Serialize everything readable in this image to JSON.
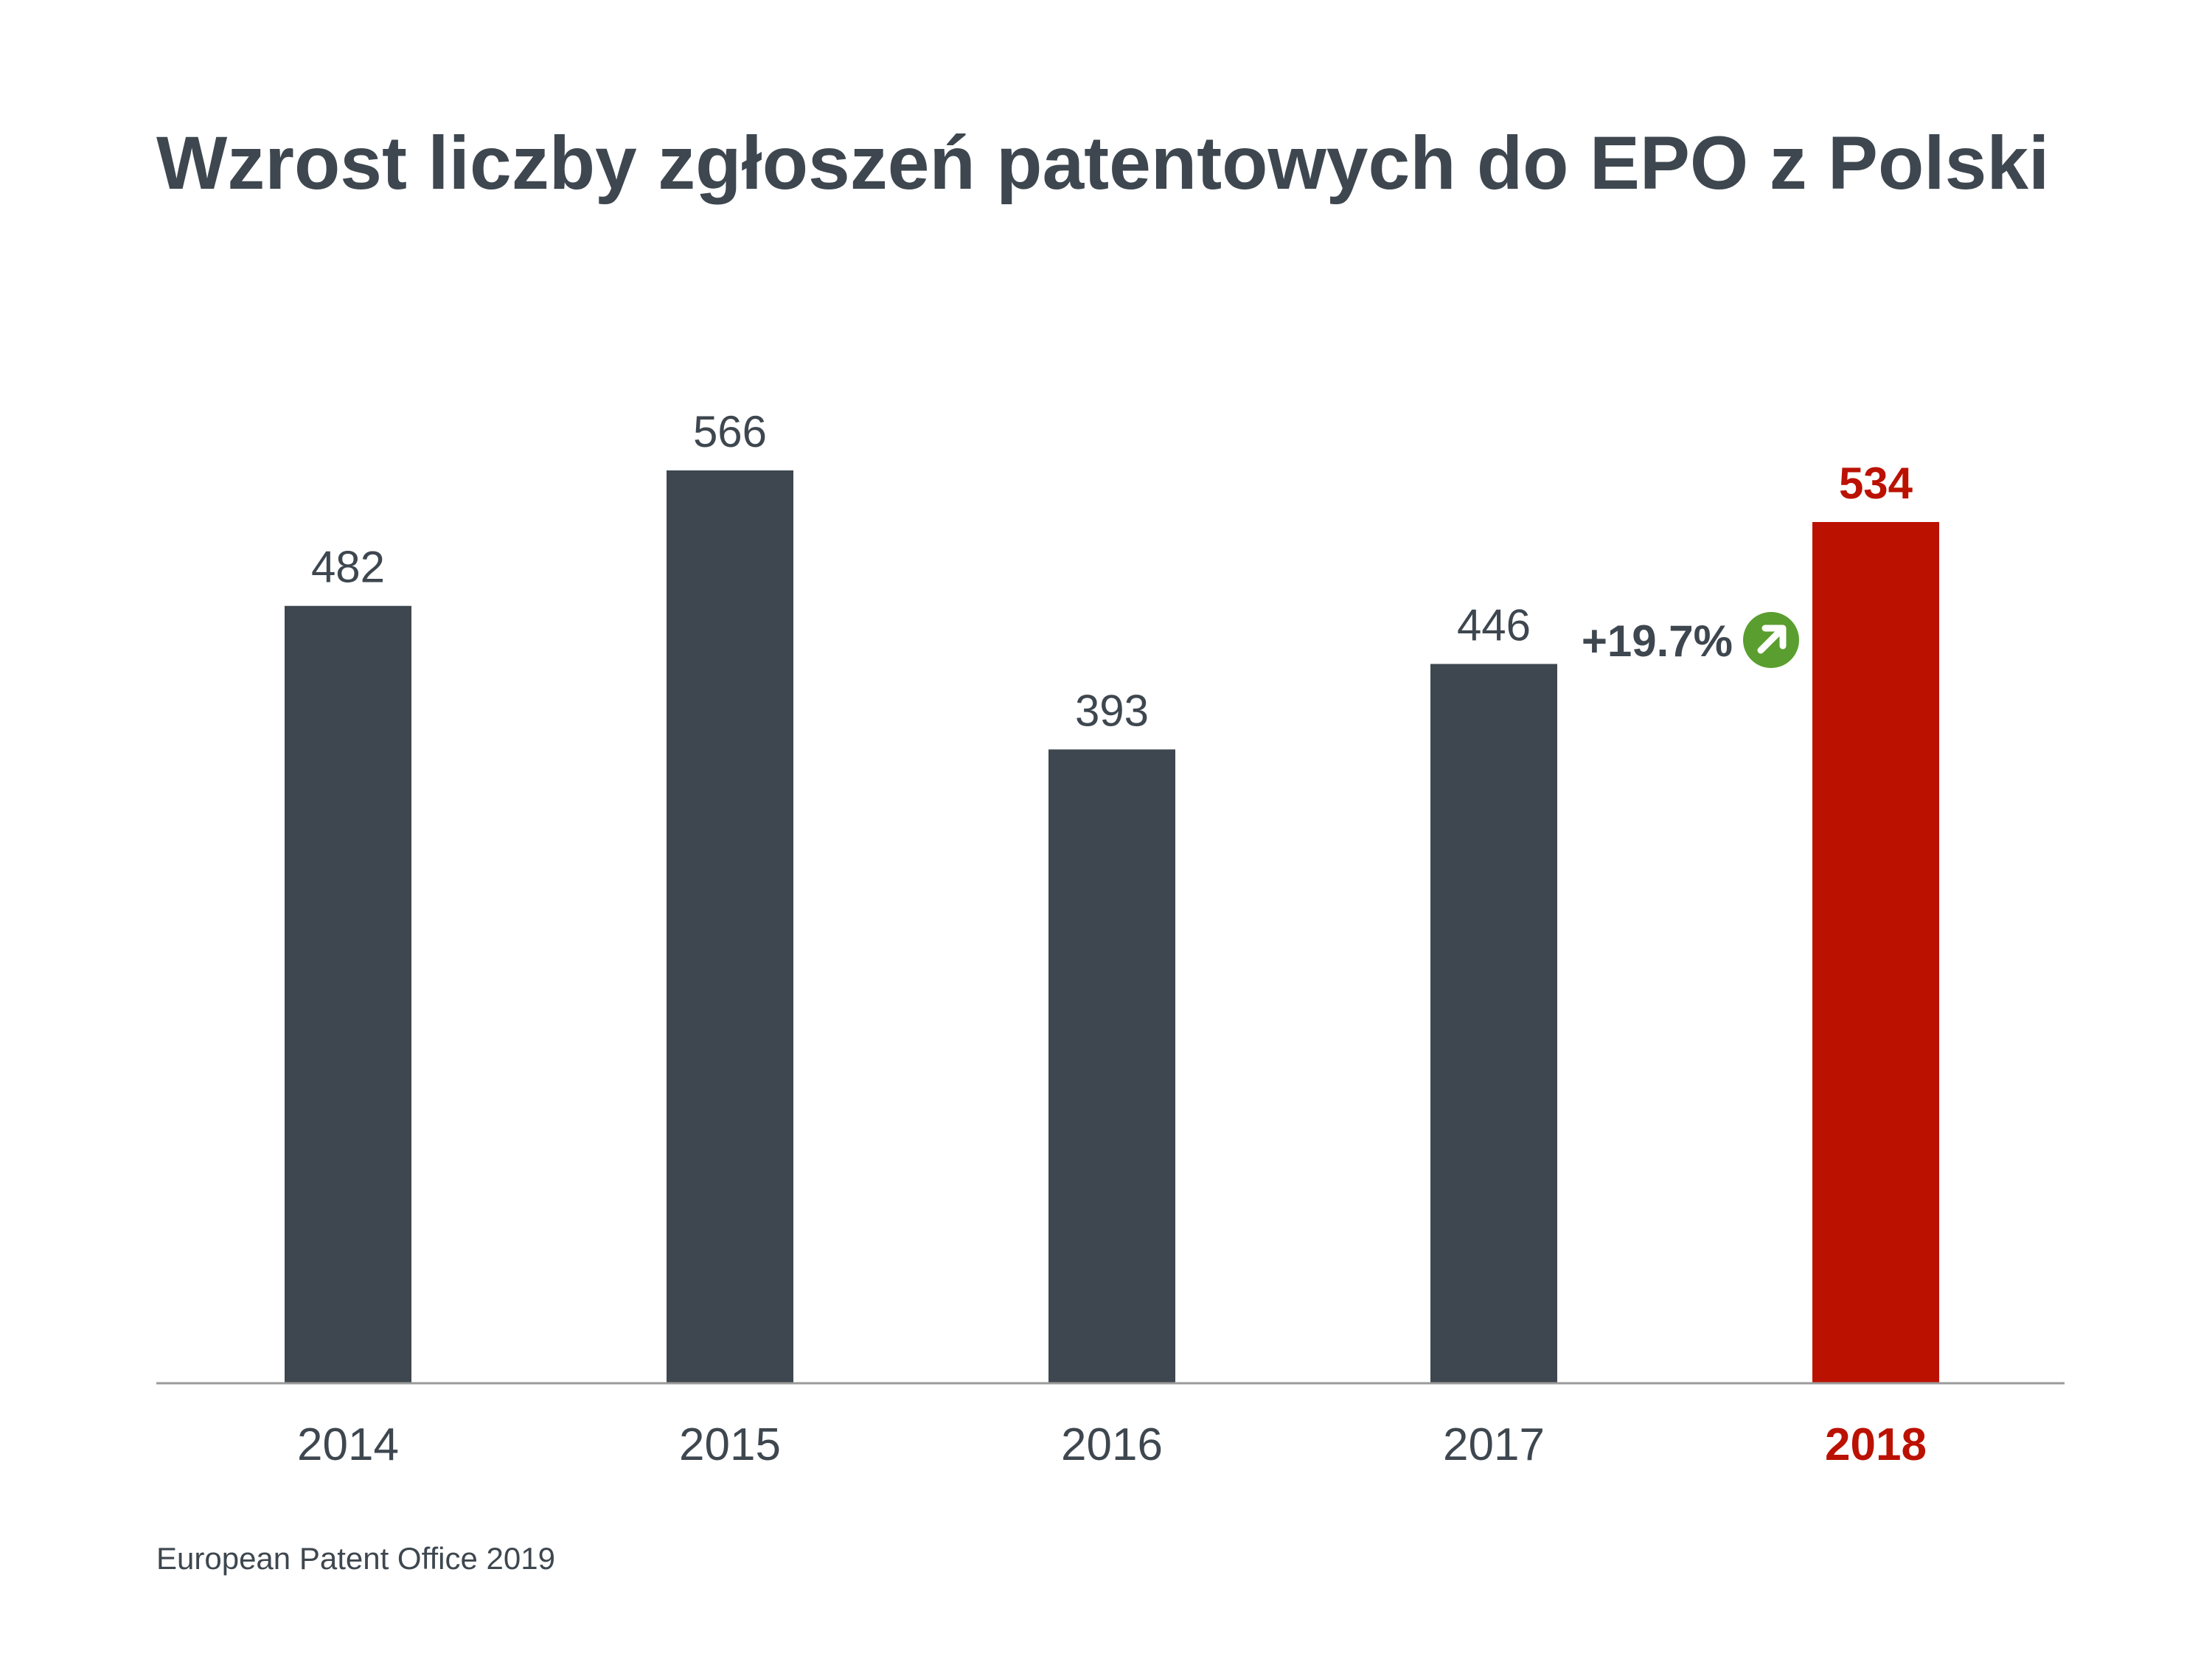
{
  "chart_data": {
    "type": "bar",
    "title": "Wzrost liczby zgłoszeń patentowych do EPO z Polski",
    "categories": [
      "2014",
      "2015",
      "2016",
      "2017",
      "2018"
    ],
    "values": [
      482,
      566,
      393,
      446,
      534
    ],
    "value_labels": [
      "482",
      "566",
      "393",
      "446",
      "534"
    ],
    "highlight_index": 4,
    "xlabel": "",
    "ylabel": "",
    "ylim": [
      0,
      566
    ],
    "grid": false,
    "legend": "none",
    "annotation": {
      "text": "+19.7%",
      "between": [
        "2017",
        "2018"
      ],
      "icon": "arrow-up-right-circle-icon"
    }
  },
  "source": "European Patent Office 2019",
  "colors": {
    "bar": "#3e474f",
    "highlight": "#bb1100",
    "text": "#3e474f",
    "axis": "#9a9a9a",
    "annotation_icon": "#5a9e2f"
  }
}
